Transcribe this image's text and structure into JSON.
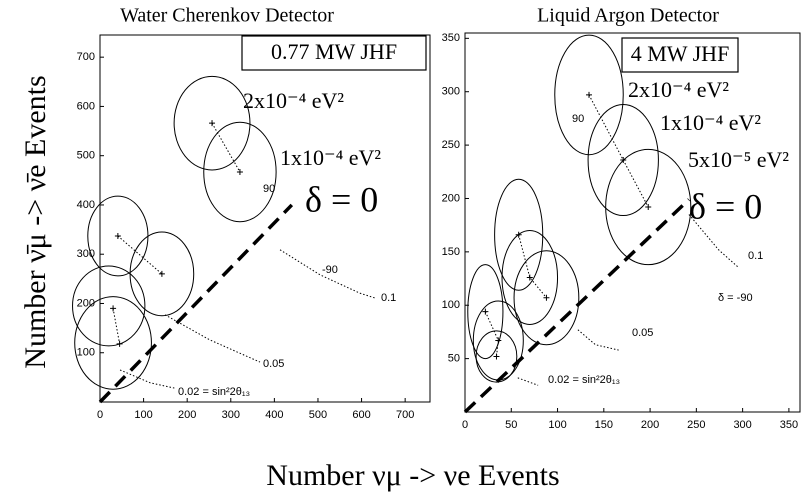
{
  "shared": {
    "xlabel": "Number νμ -> νe Events",
    "ylabel": "Number ν̄μ -> ν̄e Events"
  },
  "chart_data": [
    {
      "type": "scatter",
      "title": "Water Cherenkov Detector",
      "box_label": "0.77 MW JHF",
      "xlim": [
        0,
        757
      ],
      "ylim": [
        0,
        745
      ],
      "xticks": [
        0,
        100,
        200,
        300,
        400,
        500,
        600,
        700
      ],
      "yticks": [
        100,
        200,
        300,
        400,
        500,
        600,
        700
      ],
      "ellipses": {
        "x": [
          257,
          321,
          41,
          142,
          20,
          30
        ],
        "y": [
          566,
          467,
          337,
          260,
          195,
          120
        ],
        "x_err": [
          87,
          83,
          69,
          73,
          83,
          88
        ],
        "y_err": [
          95,
          101,
          81,
          85,
          81,
          94
        ]
      },
      "markers": {
        "x": [
          257,
          321,
          41,
          142,
          30,
          45
        ],
        "y": [
          566,
          467,
          337,
          260,
          190,
          118
        ]
      },
      "curves": [
        {
          "x": [
            257,
            321
          ],
          "y": [
            566,
            467
          ]
        },
        {
          "x": [
            41,
            142
          ],
          "y": [
            337,
            260
          ]
        },
        {
          "x": [
            30,
            45
          ],
          "y": [
            190,
            118
          ]
        },
        {
          "x": [
            413,
            505,
            596,
            631
          ],
          "y": [
            309,
            258,
            221,
            211
          ]
        },
        {
          "x": [
            149,
            252,
            367
          ],
          "y": [
            177,
            126,
            81
          ]
        },
        {
          "x": [
            46,
            115,
            172
          ],
          "y": [
            65,
            39,
            28
          ]
        }
      ],
      "diagonal": {
        "x": [
          0,
          440
        ],
        "y": [
          0,
          400
        ]
      },
      "annotations": [
        "2x10⁻⁴ eV²",
        "1x10⁻⁴ eV²",
        "δ = 0",
        "90",
        "-90",
        "0.1",
        "0.05",
        "0.02 = sin²2θ₁₃"
      ]
    },
    {
      "type": "scatter",
      "title": "Liquid Argon Detector",
      "box_label": "4 MW JHF",
      "xlim": [
        0,
        362
      ],
      "ylim": [
        0,
        355
      ],
      "xticks": [
        0,
        50,
        100,
        150,
        200,
        250,
        300,
        350
      ],
      "yticks": [
        50,
        100,
        150,
        200,
        250,
        300,
        350
      ],
      "ellipses": {
        "x": [
          134,
          171,
          198,
          58,
          70,
          88,
          22,
          36,
          34
        ],
        "y": [
          297,
          236,
          192,
          166,
          126,
          107,
          94,
          67,
          52
        ],
        "x_err": [
          37,
          38,
          46,
          26,
          30,
          35,
          19,
          27,
          22
        ],
        "y_err": [
          56,
          52,
          54,
          52,
          44,
          44,
          44,
          37,
          24
        ]
      },
      "markers": {
        "x": [
          134,
          171,
          198,
          58,
          70,
          88,
          22,
          36,
          34
        ],
        "y": [
          297,
          236,
          192,
          166,
          126,
          107,
          94,
          67,
          52
        ]
      },
      "curves": [
        {
          "x": [
            134,
            171,
            198
          ],
          "y": [
            297,
            236,
            192
          ]
        },
        {
          "x": [
            58,
            70,
            88
          ],
          "y": [
            166,
            126,
            107
          ]
        },
        {
          "x": [
            22,
            36,
            34
          ],
          "y": [
            94,
            67,
            52
          ]
        },
        {
          "x": [
            242,
            274,
            296
          ],
          "y": [
            185,
            152,
            135
          ]
        },
        {
          "x": [
            122,
            141,
            166
          ],
          "y": [
            77,
            63,
            58
          ]
        },
        {
          "x": [
            57,
            79
          ],
          "y": [
            32,
            25
          ]
        }
      ],
      "diagonal": {
        "x": [
          0,
          242
        ],
        "y": [
          0,
          199
        ]
      },
      "annotations": [
        "2x10⁻⁴ eV²",
        "1x10⁻⁴ eV²",
        "5x10⁻⁵ eV²",
        "δ = 0",
        "90",
        "0.1",
        "δ = -90",
        "0.05",
        "0.02 = sin²2θ₁₃"
      ]
    }
  ]
}
